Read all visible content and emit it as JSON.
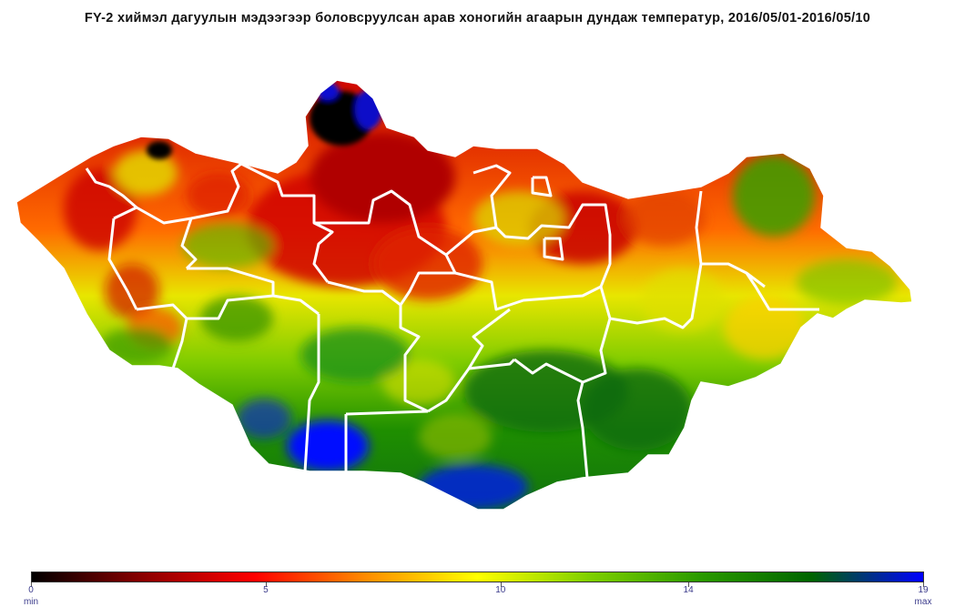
{
  "title": "FY-2 хиймэл дагуулын мэдээгээр боловсруулсан арав хоногийн агаарын дундаж температур, 2016/05/01-2016/05/10",
  "legend": {
    "min_value": 0,
    "max_value": 19,
    "tick_labels": [
      "0",
      "5",
      "10",
      "14",
      "19"
    ],
    "tick_values": [
      0,
      5,
      10,
      14,
      19
    ],
    "min_label": "min",
    "max_label": "max",
    "colors": [
      "#000000",
      "#8b0000",
      "#ff0000",
      "#ff8c00",
      "#ffff00",
      "#7fd000",
      "#2a9a00",
      "#006400",
      "#0000ff"
    ]
  },
  "map": {
    "country": "Mongolia",
    "boundaries_color": "#ffffff",
    "warm_zone": "south (Gobi)",
    "cold_zone": "north (Khövsgöl / Khangai)"
  }
}
